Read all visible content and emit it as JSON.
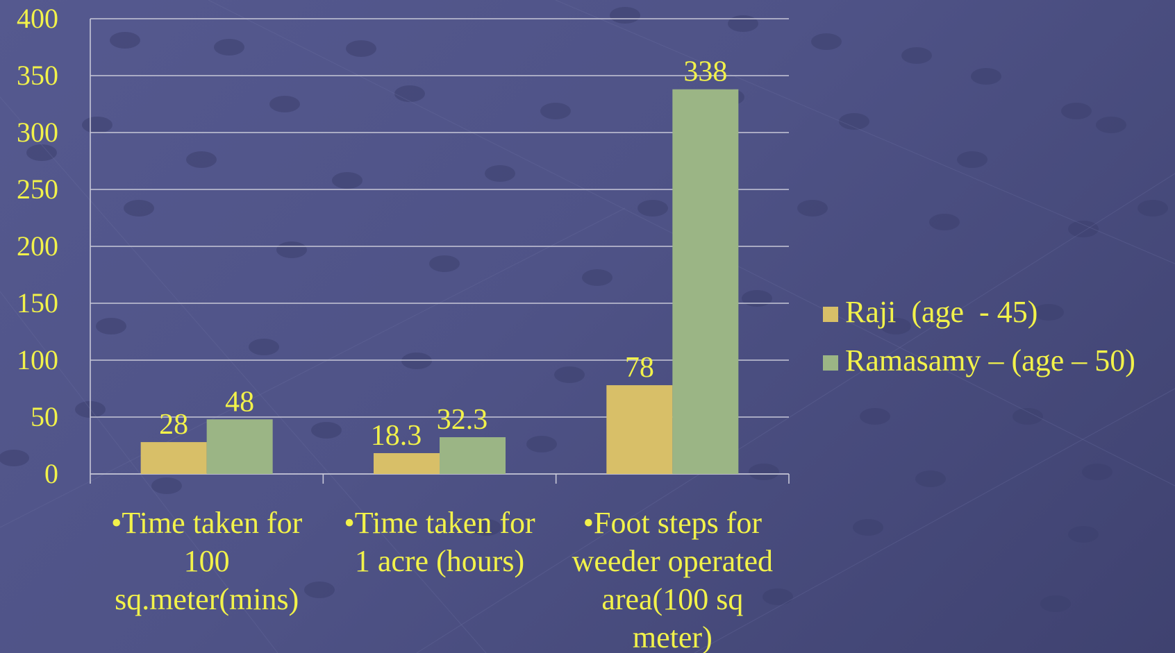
{
  "chart_data": {
    "type": "bar",
    "categories": [
      [
        "•Time taken for",
        "100",
        "sq.meter(mins)"
      ],
      [
        "•Time taken for",
        "1 acre (hours)"
      ],
      [
        "•Foot steps for",
        "weeder operated",
        "area(100 sq",
        "meter)"
      ]
    ],
    "series": [
      {
        "name": "Raji  (age  - 45)",
        "values": [
          28,
          18.3,
          78
        ],
        "labels": [
          "28",
          "18.3",
          "78"
        ],
        "color": "#d8bf68"
      },
      {
        "name": "Ramasamy – (age – 50)",
        "values": [
          48,
          32.3,
          338
        ],
        "labels": [
          "48",
          "32.3",
          "338"
        ],
        "color": "#9bb585"
      }
    ],
    "yticks": [
      "0",
      "50",
      "100",
      "150",
      "200",
      "250",
      "300",
      "350",
      "400"
    ],
    "ylim": [
      0,
      400
    ],
    "grid": true,
    "legend_position": "right",
    "text_color": "#f2f24a",
    "gridline_color": "#c8c8d8"
  }
}
